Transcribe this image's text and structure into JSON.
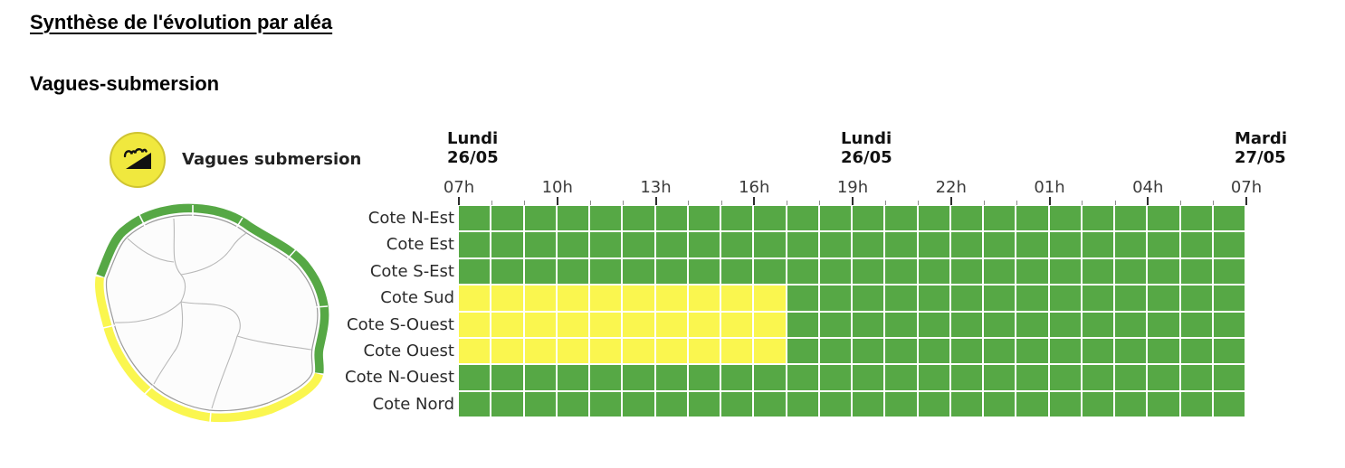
{
  "page": {
    "title": "Synthèse de l'évolution par aléa",
    "subtitle": "Vagues-submersion"
  },
  "hazard": {
    "label": "Vagues submersion",
    "icon": "vagues-submersion-icon"
  },
  "chart_data": {
    "type": "heatmap",
    "title": "Vagues submersion",
    "x_axis": {
      "hours_total": 24,
      "day_headers": [
        {
          "day": "Lundi",
          "date": "26/05",
          "hour_index": 0
        },
        {
          "day": "Lundi",
          "date": "26/05",
          "hour_index": 12
        },
        {
          "day": "Mardi",
          "date": "27/05",
          "hour_index": 24
        }
      ],
      "hour_labels": [
        {
          "label": "07h",
          "hour_index": 0
        },
        {
          "label": "10h",
          "hour_index": 3
        },
        {
          "label": "13h",
          "hour_index": 6
        },
        {
          "label": "16h",
          "hour_index": 9
        },
        {
          "label": "19h",
          "hour_index": 12
        },
        {
          "label": "22h",
          "hour_index": 15
        },
        {
          "label": "01h",
          "hour_index": 18
        },
        {
          "label": "04h",
          "hour_index": 21
        },
        {
          "label": "07h",
          "hour_index": 24
        }
      ]
    },
    "levels": {
      "G": {
        "name": "vigilance-verte",
        "color": "#56A845"
      },
      "Y": {
        "name": "vigilance-jaune",
        "color": "#FAF64F"
      }
    },
    "rows": [
      {
        "label": "Cote N-Est",
        "cells": "GGGGGGGGGGGGGGGGGGGGGGGG"
      },
      {
        "label": "Cote Est",
        "cells": "GGGGGGGGGGGGGGGGGGGGGGGG"
      },
      {
        "label": "Cote S-Est",
        "cells": "GGGGGGGGGGGGGGGGGGGGGGGG"
      },
      {
        "label": "Cote Sud",
        "cells": "YYYYYYYYYYGGGGGGGGGGGGGG"
      },
      {
        "label": "Cote S-Ouest",
        "cells": "YYYYYYYYYYGGGGGGGGGGGGGG"
      },
      {
        "label": "Cote Ouest",
        "cells": "YYYYYYYYYYGGGGGGGGGGGGGG"
      },
      {
        "label": "Cote N-Ouest",
        "cells": "GGGGGGGGGGGGGGGGGGGGGGGG"
      },
      {
        "label": "Cote Nord",
        "cells": "GGGGGGGGGGGGGGGGGGGGGGGG"
      }
    ],
    "map": {
      "region": "La Réunion",
      "green_coasts": [
        "Cote N-Est",
        "Cote Est",
        "Cote S-Est",
        "Cote N-Ouest",
        "Cote Nord"
      ],
      "yellow_coasts": [
        "Cote Sud",
        "Cote S-Ouest",
        "Cote Ouest"
      ]
    }
  }
}
